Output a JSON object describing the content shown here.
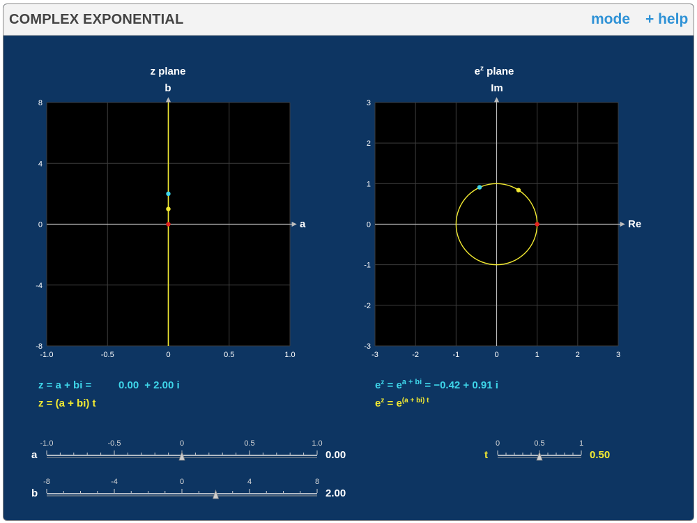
{
  "app": {
    "title": "COMPLEX EXPONENTIAL",
    "mode_label": "mode",
    "help_label": "+ help"
  },
  "colors": {
    "background": "#0d3562",
    "plot_bg": "#000000",
    "cyan": "#3fd6ea",
    "yellow": "#f2ea32",
    "red": "#e5231e",
    "link": "#2f92d6"
  },
  "z_plane": {
    "title": "z plane",
    "x_axis_label": "a",
    "y_axis_label": "b",
    "x_ticks": [
      "-1.0",
      "-0.5",
      "0",
      "0.5",
      "1.0"
    ],
    "y_ticks": [
      "8",
      "4",
      "0",
      "-4",
      "-8"
    ],
    "xlim": [
      -1,
      1
    ],
    "ylim": [
      -8,
      8
    ],
    "points": {
      "origin": [
        0,
        0
      ],
      "z_t": [
        0,
        1
      ],
      "z": [
        0,
        2
      ]
    },
    "path": "vertical line a = 0"
  },
  "ez_plane": {
    "title_base": "e",
    "title_sup": "z",
    "title_rest": " plane",
    "x_axis_label": "Re",
    "y_axis_label": "Im",
    "x_ticks": [
      "-3",
      "-2",
      "-1",
      "0",
      "1",
      "2",
      "3"
    ],
    "y_ticks": [
      "3",
      "2",
      "1",
      "0",
      "-1",
      "-2",
      "-3"
    ],
    "xlim": [
      -3,
      3
    ],
    "ylim": [
      -3,
      3
    ],
    "points": {
      "one": [
        1,
        0
      ],
      "ez_t": [
        0.54,
        0.84
      ],
      "ez": [
        -0.42,
        0.91
      ]
    },
    "path": "unit circle"
  },
  "equations": {
    "z_line": {
      "prefix": "z = a + bi =",
      "re": "0.00",
      "im": "+ 2.00 i"
    },
    "zt_line": {
      "text": "z = (a + bi) t"
    },
    "ez_line": {
      "base": "e",
      "sup1": "z",
      "mid": " = e",
      "sup2": "a + bi",
      "result": " = −0.42  + 0.91 i"
    },
    "ezt_line": {
      "base": "e",
      "sup1": "z",
      "mid": " = e",
      "sup2": "(a + bi) t"
    }
  },
  "sliders": {
    "a": {
      "label": "a",
      "ticks": [
        "-1.0",
        "-0.5",
        "0",
        "0.5",
        "1.0"
      ],
      "value": "0.00",
      "value_num": 0,
      "range": [
        -1,
        1
      ]
    },
    "b": {
      "label": "b",
      "ticks": [
        "-8",
        "-4",
        "0",
        "4",
        "8"
      ],
      "value": "2.00",
      "value_num": 2,
      "range": [
        -8,
        8
      ]
    },
    "t": {
      "label": "t",
      "ticks": [
        "0",
        "0.5",
        "1"
      ],
      "value": "0.50",
      "value_num": 0.5,
      "range": [
        0,
        1
      ]
    }
  }
}
